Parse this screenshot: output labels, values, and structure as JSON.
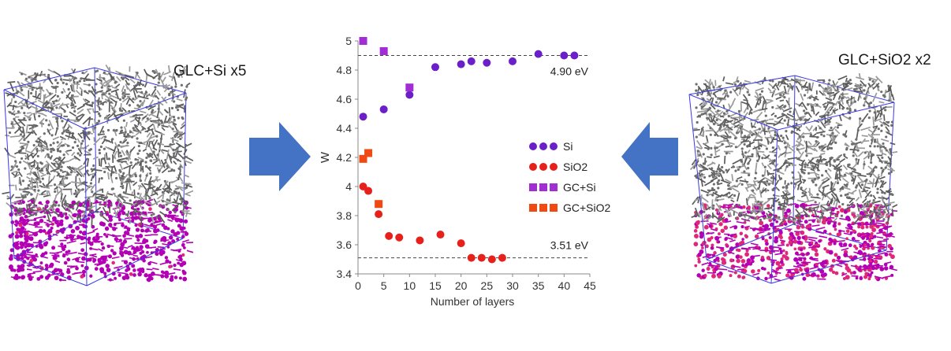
{
  "left_panel": {
    "label": "GLC+Si x5",
    "icon": "atomic-structure-si-icon"
  },
  "right_panel": {
    "label": "GLC+SiO2 x2",
    "icon": "atomic-structure-sio2-icon"
  },
  "colors": {
    "arrow": "#4472c4",
    "carbon": "#6e6e6e",
    "silicon": "#b400b4",
    "oxygen": "#e0287a",
    "box": "#3a3ae6"
  },
  "chart_data": {
    "type": "scatter",
    "title": "",
    "xlabel": "Number of layers",
    "ylabel": "W",
    "xlim": [
      0,
      45
    ],
    "ylim": [
      3.4,
      5.0
    ],
    "xticks": [
      0,
      5,
      10,
      15,
      20,
      25,
      30,
      35,
      40,
      45
    ],
    "yticks": [
      3.4,
      3.6,
      3.8,
      4.0,
      4.2,
      4.4,
      4.6,
      4.8,
      5.0
    ],
    "ytick_labels": [
      "3.4",
      "3.6",
      "3.8",
      "4",
      "4.2",
      "4.4",
      "4.6",
      "4.8",
      "5"
    ],
    "grid": false,
    "legend_position": "right",
    "reference_lines": [
      {
        "y": 4.9,
        "label": "4.90 eV"
      },
      {
        "y": 3.51,
        "label": "3.51 eV"
      }
    ],
    "series": [
      {
        "name": "Si",
        "marker": "circle",
        "color": "#6a1fc8",
        "x": [
          1,
          5,
          10,
          15,
          20,
          22,
          25,
          30,
          35,
          40,
          42
        ],
        "y": [
          4.48,
          4.53,
          4.63,
          4.82,
          4.84,
          4.86,
          4.85,
          4.86,
          4.91,
          4.9,
          4.9
        ]
      },
      {
        "name": "SiO2",
        "marker": "circle",
        "color": "#e8201c",
        "x": [
          1,
          2,
          4,
          6,
          8,
          12,
          16,
          20,
          22,
          24,
          26,
          28
        ],
        "y": [
          4.0,
          3.97,
          3.81,
          3.66,
          3.65,
          3.63,
          3.67,
          3.61,
          3.51,
          3.51,
          3.5,
          3.51
        ]
      },
      {
        "name": "GC+Si",
        "marker": "square",
        "color": "#a02ed4",
        "x": [
          1,
          5,
          10
        ],
        "y": [
          5.0,
          4.93,
          4.68
        ]
      },
      {
        "name": "GC+SiO2",
        "marker": "square",
        "color": "#f04a12",
        "x": [
          1,
          2,
          4
        ],
        "y": [
          4.19,
          4.23,
          3.88
        ]
      }
    ]
  }
}
